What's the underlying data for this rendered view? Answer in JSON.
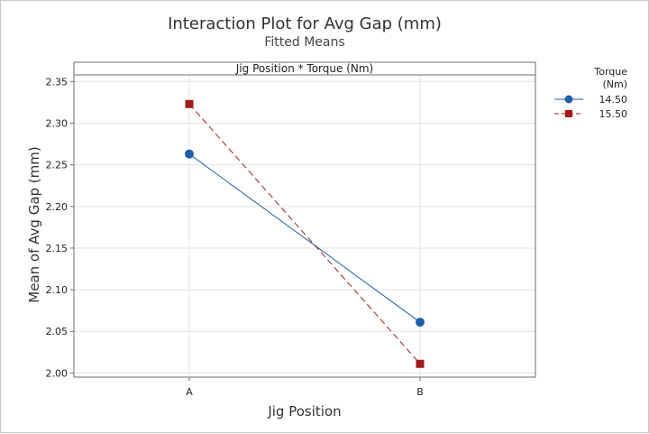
{
  "chart_data": {
    "type": "line",
    "title": "Interaction Plot for Avg Gap (mm)",
    "subtitle": "Fitted Means",
    "panel_label": "Jig Position * Torque (Nm)",
    "xlabel": "Jig Position",
    "ylabel": "Mean of Avg Gap (mm)",
    "categories": [
      "A",
      "B"
    ],
    "ylim": [
      1.995,
      2.358
    ],
    "yticks": [
      2.0,
      2.05,
      2.1,
      2.15,
      2.2,
      2.25,
      2.3,
      2.35
    ],
    "grid": true,
    "legend": {
      "title_line1": "Torque",
      "title_line2": "(Nm)",
      "placement": "right"
    },
    "series": [
      {
        "name": "14.50",
        "values": [
          2.263,
          2.061
        ],
        "color": "#1f5fa8",
        "marker": "circle",
        "dash": "solid"
      },
      {
        "name": "15.50",
        "values": [
          2.323,
          2.011
        ],
        "color": "#a31a1a",
        "marker": "square",
        "dash": "dashed"
      }
    ]
  }
}
